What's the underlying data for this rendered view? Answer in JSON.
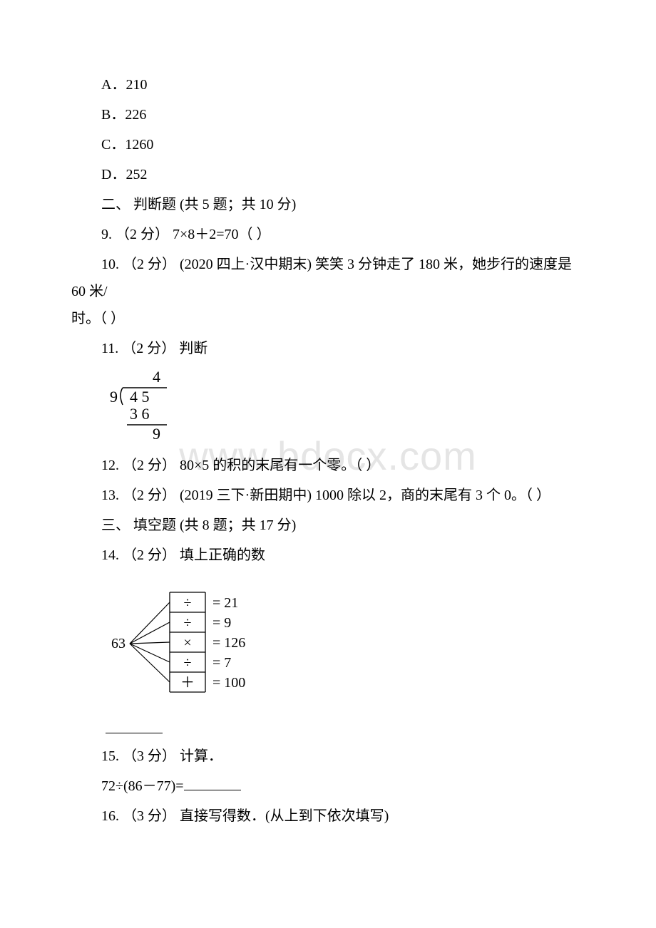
{
  "watermark": "www.bdocx.com",
  "optA": "A．210",
  "optB": "B．226",
  "optC": "C．1260",
  "optD": "D．252",
  "section2": "二、 判断题 (共 5 题；共 10 分)",
  "q9": "9.  （2 分） 7×8＋2=70（  ）",
  "q10a": "10.  （2 分）  (2020 四上·汉中期末) 笑笑 3 分钟走了 180 米，她步行的速度是 60 米/",
  "q10b": "时。（  ）",
  "q11": "11.  （2 分）  判断",
  "division": {
    "quotient": "4",
    "divisor": "9",
    "dividend": "4   5",
    "sub": "3   6",
    "rem": "9"
  },
  "q12": "12.  （2 分）  80×5 的积的末尾有一个零。（  ）",
  "q13": "13.  （2 分）  (2019 三下·新田期中) 1000 除以 2，商的末尾有 3 个 0。（  ）",
  "section3": "三、 填空题 (共 8 题；共 17 分)",
  "q14": "14.  （2 分）  填上正确的数",
  "diagram": {
    "root": "63",
    "rows": [
      {
        "op": "÷",
        "res": "21"
      },
      {
        "op": "÷",
        "res": "9"
      },
      {
        "op": "×",
        "res": "126"
      },
      {
        "op": "÷",
        "res": "7"
      },
      {
        "op": "＋",
        "res": "100"
      }
    ],
    "font_size": 20,
    "stroke": "#000000"
  },
  "q15": "15.  （3 分）  计算．",
  "q15expr": "72÷(86－77)=",
  "q16": "16.  （3 分）  直接写得数．(从上到下依次填写)"
}
